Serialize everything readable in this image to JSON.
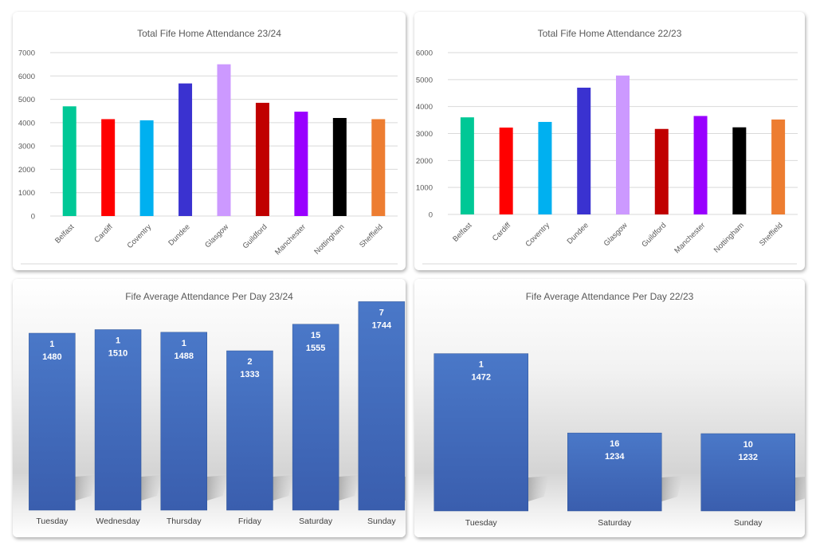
{
  "chart_data": [
    {
      "id": "p1",
      "type": "bar",
      "title": "Total Fife Home Attendance 23/24",
      "categories": [
        "Belfast",
        "Cardiff",
        "Coventry",
        "Dundee",
        "Glasgow",
        "Guildford",
        "Manchester",
        "Nottingham",
        "Sheffield"
      ],
      "values": [
        4700,
        4150,
        4100,
        5680,
        6500,
        4850,
        4470,
        4200,
        4150
      ],
      "colors": [
        "#00C896",
        "#FF0000",
        "#00B0F0",
        "#3A32D0",
        "#CC99FF",
        "#C00000",
        "#9900FF",
        "#000000",
        "#ED7D31"
      ],
      "yticks": [
        "0",
        "1000",
        "2000",
        "3000",
        "4000",
        "5000",
        "6000",
        "7000"
      ],
      "ylim": [
        0,
        7000
      ],
      "grid": true,
      "legend": "none"
    },
    {
      "id": "p2",
      "type": "bar",
      "title": "Total Fife Home Attendance 22/23",
      "categories": [
        "Belfast",
        "Cardiff",
        "Coventry",
        "Dundee",
        "Glasgow",
        "Guildford",
        "Manchester",
        "Nottingham",
        "Sheffield"
      ],
      "values": [
        3600,
        3220,
        3430,
        4700,
        5150,
        3170,
        3650,
        3230,
        3520
      ],
      "colors": [
        "#00C896",
        "#FF0000",
        "#00B0F0",
        "#3A32D0",
        "#CC99FF",
        "#C00000",
        "#9900FF",
        "#000000",
        "#ED7D31"
      ],
      "yticks": [
        "0",
        "1000",
        "2000",
        "3000",
        "4000",
        "5000",
        "6000"
      ],
      "ylim": [
        0,
        6000
      ],
      "grid": true,
      "legend": "none"
    },
    {
      "id": "p3",
      "type": "bar",
      "title": "Fife Average Attendance Per Day 23/24",
      "categories": [
        "Tuesday",
        "Wednesday",
        "Thursday",
        "Friday",
        "Saturday",
        "Sunday"
      ],
      "values": [
        1480,
        1510,
        1488,
        1333,
        1555,
        1744
      ],
      "counts": [
        "1",
        "1",
        "1",
        "2",
        "15",
        "7"
      ],
      "value_labels": [
        "1480",
        "1510",
        "1488",
        "1333",
        "1555",
        "1744"
      ],
      "ylim": [
        0,
        1800
      ],
      "color": "#4472C4",
      "legend": "none"
    },
    {
      "id": "p4",
      "type": "bar",
      "title": "Fife Average Attendance Per Day 22/23",
      "categories": [
        "Tuesday",
        "Saturday",
        "Sunday"
      ],
      "values": [
        1472,
        1234,
        1232
      ],
      "counts": [
        "1",
        "16",
        "10"
      ],
      "value_labels": [
        "1472",
        "1234",
        "1232"
      ],
      "ylim": [
        1000,
        1550
      ],
      "color": "#4472C4",
      "legend": "none"
    }
  ]
}
